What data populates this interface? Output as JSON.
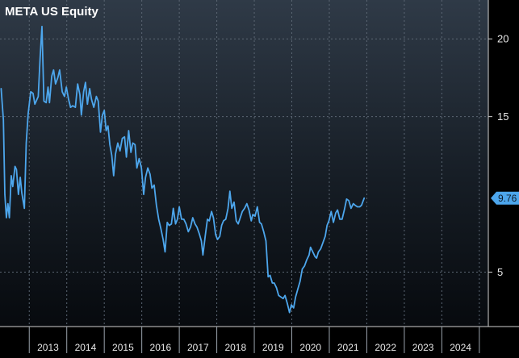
{
  "chart_data": {
    "type": "line",
    "title": "META US Equity",
    "xlabel": "",
    "ylabel": "",
    "x_axis_labels": [
      "2013",
      "2014",
      "2015",
      "2016",
      "2017",
      "2018",
      "2019",
      "2020",
      "2021",
      "2022",
      "2023",
      "2024"
    ],
    "y_ticks": [
      5,
      15,
      20
    ],
    "ylim": [
      1.5,
      22.5
    ],
    "xlim": [
      2012.22,
      2025.24
    ],
    "grid": true,
    "last_value_label": "9.76",
    "series": [
      {
        "color": "#4da6ec",
        "points": [
          [
            2012.25,
            16.8
          ],
          [
            2012.31,
            14.8
          ],
          [
            2012.35,
            10.0
          ],
          [
            2012.39,
            8.5
          ],
          [
            2012.43,
            9.4
          ],
          [
            2012.47,
            8.5
          ],
          [
            2012.52,
            11.2
          ],
          [
            2012.56,
            10.5
          ],
          [
            2012.62,
            11.8
          ],
          [
            2012.66,
            11.6
          ],
          [
            2012.71,
            10.0
          ],
          [
            2012.76,
            11.1
          ],
          [
            2012.8,
            10.1
          ],
          [
            2012.87,
            9.1
          ],
          [
            2012.92,
            13.3
          ],
          [
            2012.97,
            15.2
          ],
          [
            2013.04,
            16.6
          ],
          [
            2013.1,
            16.5
          ],
          [
            2013.15,
            15.8
          ],
          [
            2013.24,
            16.3
          ],
          [
            2013.29,
            18.8
          ],
          [
            2013.34,
            20.8
          ],
          [
            2013.39,
            16.0
          ],
          [
            2013.45,
            15.9
          ],
          [
            2013.5,
            16.9
          ],
          [
            2013.54,
            15.9
          ],
          [
            2013.6,
            17.6
          ],
          [
            2013.65,
            18.0
          ],
          [
            2013.7,
            17.1
          ],
          [
            2013.76,
            17.5
          ],
          [
            2013.81,
            18.0
          ],
          [
            2013.88,
            16.6
          ],
          [
            2013.94,
            16.3
          ],
          [
            2013.99,
            16.9
          ],
          [
            2014.05,
            16.1
          ],
          [
            2014.1,
            15.6
          ],
          [
            2014.16,
            15.7
          ],
          [
            2014.23,
            15.6
          ],
          [
            2014.29,
            17.1
          ],
          [
            2014.35,
            16.4
          ],
          [
            2014.39,
            15.1
          ],
          [
            2014.45,
            16.6
          ],
          [
            2014.5,
            17.2
          ],
          [
            2014.55,
            15.8
          ],
          [
            2014.61,
            16.8
          ],
          [
            2014.66,
            16.1
          ],
          [
            2014.72,
            15.6
          ],
          [
            2014.79,
            16.3
          ],
          [
            2014.84,
            16.0
          ],
          [
            2014.9,
            14.0
          ],
          [
            2014.95,
            15.1
          ],
          [
            2015.0,
            15.4
          ],
          [
            2015.05,
            14.1
          ],
          [
            2015.1,
            14.4
          ],
          [
            2015.15,
            13.2
          ],
          [
            2015.2,
            12.5
          ],
          [
            2015.25,
            11.2
          ],
          [
            2015.3,
            12.6
          ],
          [
            2015.36,
            13.3
          ],
          [
            2015.42,
            12.8
          ],
          [
            2015.48,
            13.6
          ],
          [
            2015.54,
            13.7
          ],
          [
            2015.59,
            12.4
          ],
          [
            2015.65,
            14.1
          ],
          [
            2015.71,
            12.7
          ],
          [
            2015.76,
            13.3
          ],
          [
            2015.82,
            13.2
          ],
          [
            2015.87,
            11.7
          ],
          [
            2015.93,
            12.3
          ],
          [
            2015.99,
            11.7
          ],
          [
            2016.05,
            10.0
          ],
          [
            2016.1,
            11.1
          ],
          [
            2016.16,
            11.7
          ],
          [
            2016.22,
            11.3
          ],
          [
            2016.27,
            10.4
          ],
          [
            2016.33,
            10.6
          ],
          [
            2016.39,
            9.3
          ],
          [
            2016.45,
            8.4
          ],
          [
            2016.51,
            7.8
          ],
          [
            2016.57,
            7.1
          ],
          [
            2016.62,
            6.3
          ],
          [
            2016.68,
            8.2
          ],
          [
            2016.73,
            8.0
          ],
          [
            2016.79,
            8.1
          ],
          [
            2016.84,
            9.1
          ],
          [
            2016.9,
            8.1
          ],
          [
            2016.95,
            8.4
          ],
          [
            2017.0,
            9.2
          ],
          [
            2017.06,
            8.4
          ],
          [
            2017.12,
            8.4
          ],
          [
            2017.18,
            8.1
          ],
          [
            2017.24,
            7.6
          ],
          [
            2017.3,
            7.9
          ],
          [
            2017.36,
            8.5
          ],
          [
            2017.42,
            8.1
          ],
          [
            2017.47,
            7.9
          ],
          [
            2017.53,
            7.5
          ],
          [
            2017.59,
            7.0
          ],
          [
            2017.63,
            6.1
          ],
          [
            2017.69,
            7.3
          ],
          [
            2017.75,
            8.4
          ],
          [
            2017.8,
            8.3
          ],
          [
            2017.86,
            8.9
          ],
          [
            2017.91,
            8.5
          ],
          [
            2017.97,
            7.4
          ],
          [
            2018.02,
            7.1
          ],
          [
            2018.08,
            7.3
          ],
          [
            2018.13,
            8.0
          ],
          [
            2018.18,
            8.3
          ],
          [
            2018.24,
            8.4
          ],
          [
            2018.3,
            9.1
          ],
          [
            2018.35,
            10.2
          ],
          [
            2018.4,
            9.1
          ],
          [
            2018.46,
            9.5
          ],
          [
            2018.52,
            8.3
          ],
          [
            2018.57,
            8.1
          ],
          [
            2018.64,
            8.6
          ],
          [
            2018.68,
            8.9
          ],
          [
            2018.74,
            9.1
          ],
          [
            2018.8,
            9.4
          ],
          [
            2018.86,
            9.0
          ],
          [
            2018.92,
            8.3
          ],
          [
            2018.96,
            8.7
          ],
          [
            2019.02,
            8.6
          ],
          [
            2019.08,
            9.2
          ],
          [
            2019.14,
            8.2
          ],
          [
            2019.19,
            8.1
          ],
          [
            2019.25,
            7.6
          ],
          [
            2019.31,
            7.0
          ],
          [
            2019.37,
            4.7
          ],
          [
            2019.42,
            4.8
          ],
          [
            2019.48,
            4.3
          ],
          [
            2019.53,
            4.3
          ],
          [
            2019.59,
            4.0
          ],
          [
            2019.65,
            3.5
          ],
          [
            2019.71,
            3.4
          ],
          [
            2019.77,
            3.3
          ],
          [
            2019.82,
            3.5
          ],
          [
            2019.88,
            3.0
          ],
          [
            2019.94,
            2.4
          ],
          [
            2019.99,
            2.9
          ],
          [
            2020.05,
            2.7
          ],
          [
            2020.1,
            3.4
          ],
          [
            2020.16,
            3.9
          ],
          [
            2020.22,
            4.4
          ],
          [
            2020.28,
            5.2
          ],
          [
            2020.34,
            5.4
          ],
          [
            2020.4,
            5.8
          ],
          [
            2020.46,
            6.1
          ],
          [
            2020.5,
            6.6
          ],
          [
            2020.56,
            6.3
          ],
          [
            2020.62,
            6.0
          ],
          [
            2020.66,
            5.9
          ],
          [
            2020.71,
            6.3
          ],
          [
            2020.77,
            6.5
          ],
          [
            2020.83,
            6.9
          ],
          [
            2020.89,
            7.3
          ],
          [
            2020.94,
            8.0
          ],
          [
            2020.99,
            8.3
          ],
          [
            2021.05,
            8.9
          ],
          [
            2021.11,
            8.2
          ],
          [
            2021.17,
            8.8
          ],
          [
            2021.22,
            9.0
          ],
          [
            2021.28,
            8.4
          ],
          [
            2021.34,
            8.4
          ],
          [
            2021.4,
            9.0
          ],
          [
            2021.46,
            9.7
          ],
          [
            2021.52,
            9.6
          ],
          [
            2021.58,
            9.1
          ],
          [
            2021.64,
            9.4
          ],
          [
            2021.69,
            9.3
          ],
          [
            2021.75,
            9.2
          ],
          [
            2021.81,
            9.2
          ],
          [
            2021.86,
            9.3
          ],
          [
            2021.93,
            9.76
          ]
        ]
      }
    ]
  }
}
